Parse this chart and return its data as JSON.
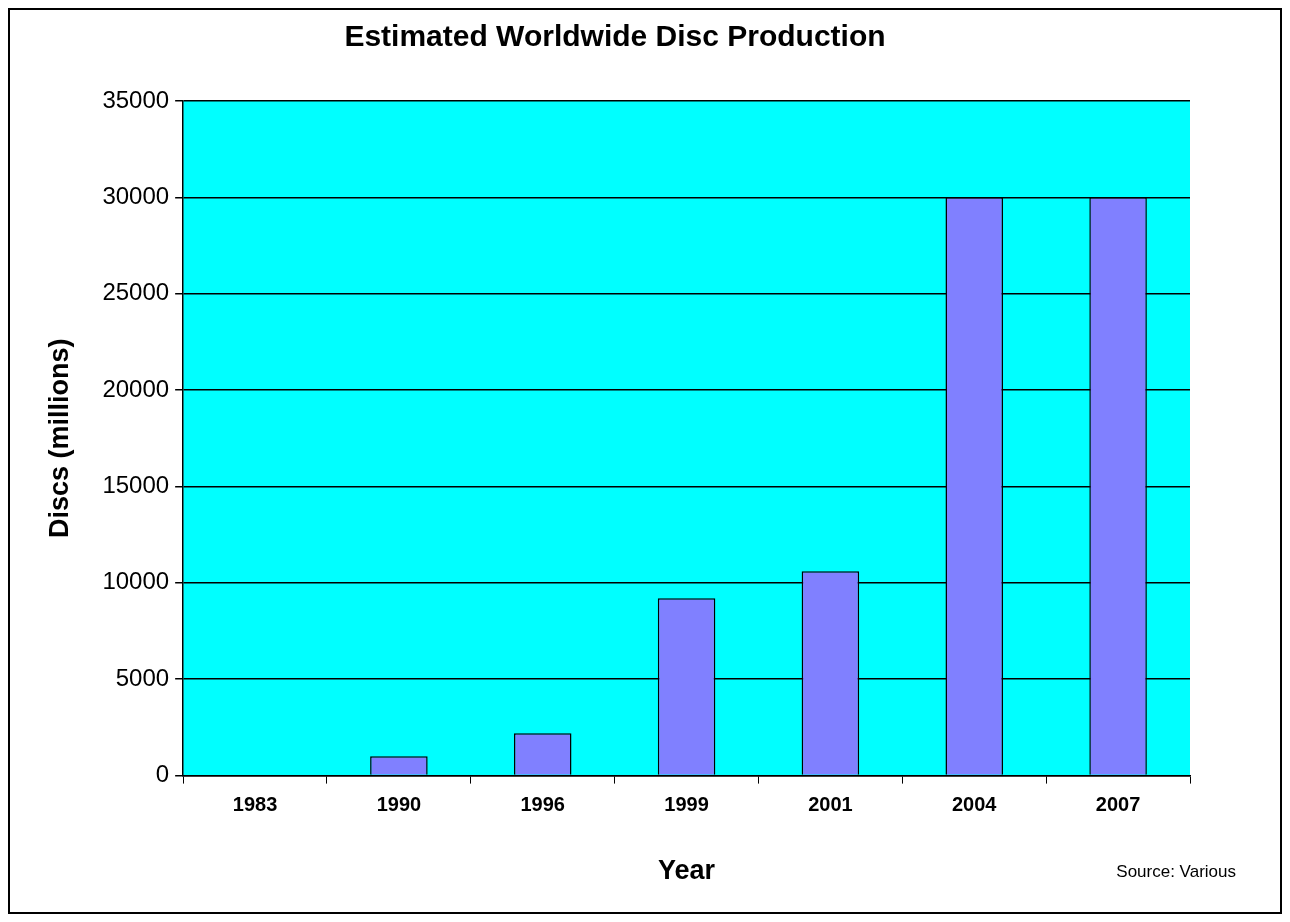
{
  "chart_data": {
    "type": "bar",
    "title": "Estimated Worldwide Disc Production",
    "xlabel": "Year",
    "ylabel": "Discs (millions)",
    "categories": [
      "1983",
      "1990",
      "1996",
      "1999",
      "2001",
      "2004",
      "2007"
    ],
    "values": [
      0,
      1000,
      2200,
      9200,
      10600,
      30000,
      30000
    ],
    "color": "#8080ff",
    "ylim": [
      0,
      35000
    ],
    "yticks": [
      0,
      5000,
      10000,
      15000,
      20000,
      25000,
      30000,
      35000
    ],
    "grid": "y",
    "annotations": [
      "Source: Various"
    ]
  }
}
